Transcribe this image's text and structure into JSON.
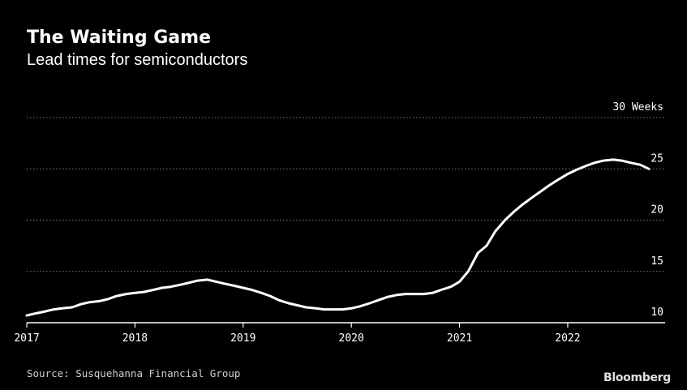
{
  "title": "The Waiting Game",
  "subtitle": "Lead times for semiconductors",
  "source": "Source: Susquehanna Financial Group",
  "brand": "Bloomberg",
  "colors": {
    "background": "#000000",
    "line": "#ffffff",
    "grid": "#7a7a7a",
    "text": "#ffffff"
  },
  "chart_data": {
    "type": "line",
    "title": "The Waiting Game",
    "subtitle": "Lead times for semiconductors",
    "ylabel": "",
    "xlabel": "",
    "ylim": [
      10,
      30
    ],
    "xlim": [
      2017,
      2022.9
    ],
    "y_ticks": [
      {
        "value": 10,
        "label": "10"
      },
      {
        "value": 15,
        "label": "15"
      },
      {
        "value": 20,
        "label": "20"
      },
      {
        "value": 25,
        "label": "25"
      },
      {
        "value": 30,
        "label": "30 Weeks"
      }
    ],
    "x_ticks": [
      {
        "value": 2017,
        "label": "2017"
      },
      {
        "value": 2018,
        "label": "2018"
      },
      {
        "value": 2019,
        "label": "2019"
      },
      {
        "value": 2020,
        "label": "2020"
      },
      {
        "value": 2021,
        "label": "2021"
      },
      {
        "value": 2022,
        "label": "2022"
      }
    ],
    "grid": true,
    "legend": "none",
    "series": [
      {
        "values": [
          [
            2017.0,
            10.7
          ],
          [
            2017.08,
            10.9
          ],
          [
            2017.17,
            11.1
          ],
          [
            2017.25,
            11.3
          ],
          [
            2017.33,
            11.4
          ],
          [
            2017.42,
            11.5
          ],
          [
            2017.5,
            11.8
          ],
          [
            2017.58,
            12.0
          ],
          [
            2017.67,
            12.1
          ],
          [
            2017.75,
            12.3
          ],
          [
            2017.83,
            12.6
          ],
          [
            2017.92,
            12.8
          ],
          [
            2018.0,
            12.9
          ],
          [
            2018.08,
            13.0
          ],
          [
            2018.17,
            13.2
          ],
          [
            2018.25,
            13.4
          ],
          [
            2018.33,
            13.5
          ],
          [
            2018.42,
            13.7
          ],
          [
            2018.5,
            13.9
          ],
          [
            2018.58,
            14.1
          ],
          [
            2018.67,
            14.2
          ],
          [
            2018.75,
            14.0
          ],
          [
            2018.83,
            13.8
          ],
          [
            2018.92,
            13.6
          ],
          [
            2019.0,
            13.4
          ],
          [
            2019.08,
            13.2
          ],
          [
            2019.17,
            12.9
          ],
          [
            2019.25,
            12.6
          ],
          [
            2019.33,
            12.2
          ],
          [
            2019.42,
            11.9
          ],
          [
            2019.5,
            11.7
          ],
          [
            2019.58,
            11.5
          ],
          [
            2019.67,
            11.4
          ],
          [
            2019.75,
            11.3
          ],
          [
            2019.83,
            11.3
          ],
          [
            2019.92,
            11.3
          ],
          [
            2020.0,
            11.4
          ],
          [
            2020.08,
            11.6
          ],
          [
            2020.17,
            11.9
          ],
          [
            2020.25,
            12.2
          ],
          [
            2020.33,
            12.5
          ],
          [
            2020.42,
            12.7
          ],
          [
            2020.5,
            12.8
          ],
          [
            2020.58,
            12.8
          ],
          [
            2020.67,
            12.8
          ],
          [
            2020.75,
            12.9
          ],
          [
            2020.83,
            13.2
          ],
          [
            2020.92,
            13.5
          ],
          [
            2021.0,
            14.0
          ],
          [
            2021.08,
            15.0
          ],
          [
            2021.17,
            16.8
          ],
          [
            2021.25,
            17.5
          ],
          [
            2021.33,
            18.9
          ],
          [
            2021.42,
            20.0
          ],
          [
            2021.5,
            20.8
          ],
          [
            2021.58,
            21.5
          ],
          [
            2021.67,
            22.2
          ],
          [
            2021.75,
            22.8
          ],
          [
            2021.83,
            23.4
          ],
          [
            2021.92,
            24.0
          ],
          [
            2022.0,
            24.5
          ],
          [
            2022.08,
            24.9
          ],
          [
            2022.17,
            25.3
          ],
          [
            2022.25,
            25.6
          ],
          [
            2022.33,
            25.8
          ],
          [
            2022.42,
            25.9
          ],
          [
            2022.5,
            25.8
          ],
          [
            2022.58,
            25.6
          ],
          [
            2022.67,
            25.4
          ],
          [
            2022.75,
            25.0
          ]
        ]
      }
    ]
  }
}
